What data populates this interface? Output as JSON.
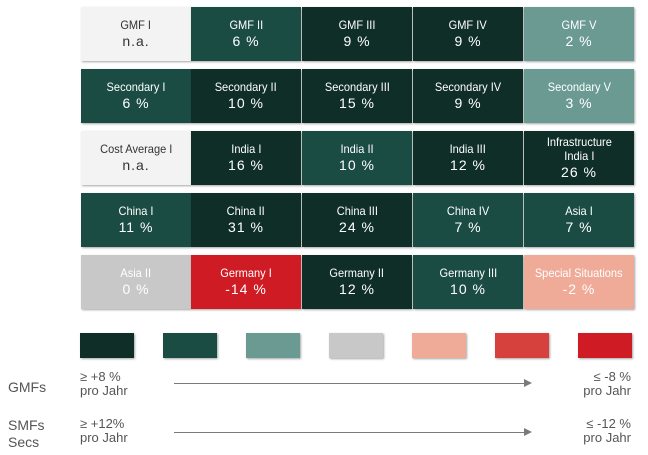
{
  "palette": {
    "c1": "#0f2e27",
    "c2": "#1a4c44",
    "c3": "#6b9a93",
    "c4": "#c8c8c8",
    "c5": "#efaa98",
    "c6": "#d7413d",
    "c7": "#cf1c24",
    "na": "#f3f3f3"
  },
  "tiles": [
    {
      "name": "GMF I",
      "value": "n.a.",
      "color": "#f3f3f3",
      "dark": true
    },
    {
      "name": "GMF II",
      "value": "6 %",
      "color": "#1a4c44"
    },
    {
      "name": "GMF III",
      "value": "9 %",
      "color": "#0f2e27"
    },
    {
      "name": "GMF IV",
      "value": "9 %",
      "color": "#0f2e27"
    },
    {
      "name": "GMF V",
      "value": "2 %",
      "color": "#6b9a93"
    },
    {
      "name": "Secondary I",
      "value": "6 %",
      "color": "#1a4c44"
    },
    {
      "name": "Secondary II",
      "value": "10 %",
      "color": "#0f2e27"
    },
    {
      "name": "Secondary III",
      "value": "15 %",
      "color": "#0f2e27"
    },
    {
      "name": "Secondary IV",
      "value": "9 %",
      "color": "#0f2e27"
    },
    {
      "name": "Secondary V",
      "value": "3 %",
      "color": "#6b9a93"
    },
    {
      "name": "Cost Average I",
      "value": "n.a.",
      "color": "#f3f3f3",
      "dark": true
    },
    {
      "name": "India I",
      "value": "16 %",
      "color": "#0f2e27"
    },
    {
      "name": "India II",
      "value": "10 %",
      "color": "#1a4c44"
    },
    {
      "name": "India III",
      "value": "12 %",
      "color": "#0f2e27"
    },
    {
      "name": "Infrastructure\nIndia I",
      "value": "26 %",
      "color": "#0f2e27"
    },
    {
      "name": "China I",
      "value": "11 %",
      "color": "#1a4c44"
    },
    {
      "name": "China II",
      "value": "31 %",
      "color": "#0f2e27"
    },
    {
      "name": "China III",
      "value": "24 %",
      "color": "#0f2e27"
    },
    {
      "name": "China IV",
      "value": "7 %",
      "color": "#1a4c44"
    },
    {
      "name": "Asia I",
      "value": "7 %",
      "color": "#1a4c44"
    },
    {
      "name": "Asia II",
      "value": "0 %",
      "color": "#c8c8c8"
    },
    {
      "name": "Germany I",
      "value": "-14 %",
      "color": "#cf1c24"
    },
    {
      "name": "Germany II",
      "value": "12 %",
      "color": "#0f2e27"
    },
    {
      "name": "Germany III",
      "value": "10 %",
      "color": "#1a4c44"
    },
    {
      "name": "Special Situations",
      "value": "-2 %",
      "color": "#efaa98"
    }
  ],
  "legend": [
    "#0f2e27",
    "#1a4c44",
    "#6b9a93",
    "#c8c8c8",
    "#efaa98",
    "#d7413d",
    "#cf1c24"
  ],
  "scales": [
    {
      "label": "GMFs",
      "left": "≥ +8 %\npro Jahr",
      "right": "≤ -8 %\npro Jahr"
    },
    {
      "label": "SMFs\nSecs",
      "left": "≥ +12%\npro Jahr",
      "right": "≤ -12 %\npro Jahr"
    }
  ]
}
